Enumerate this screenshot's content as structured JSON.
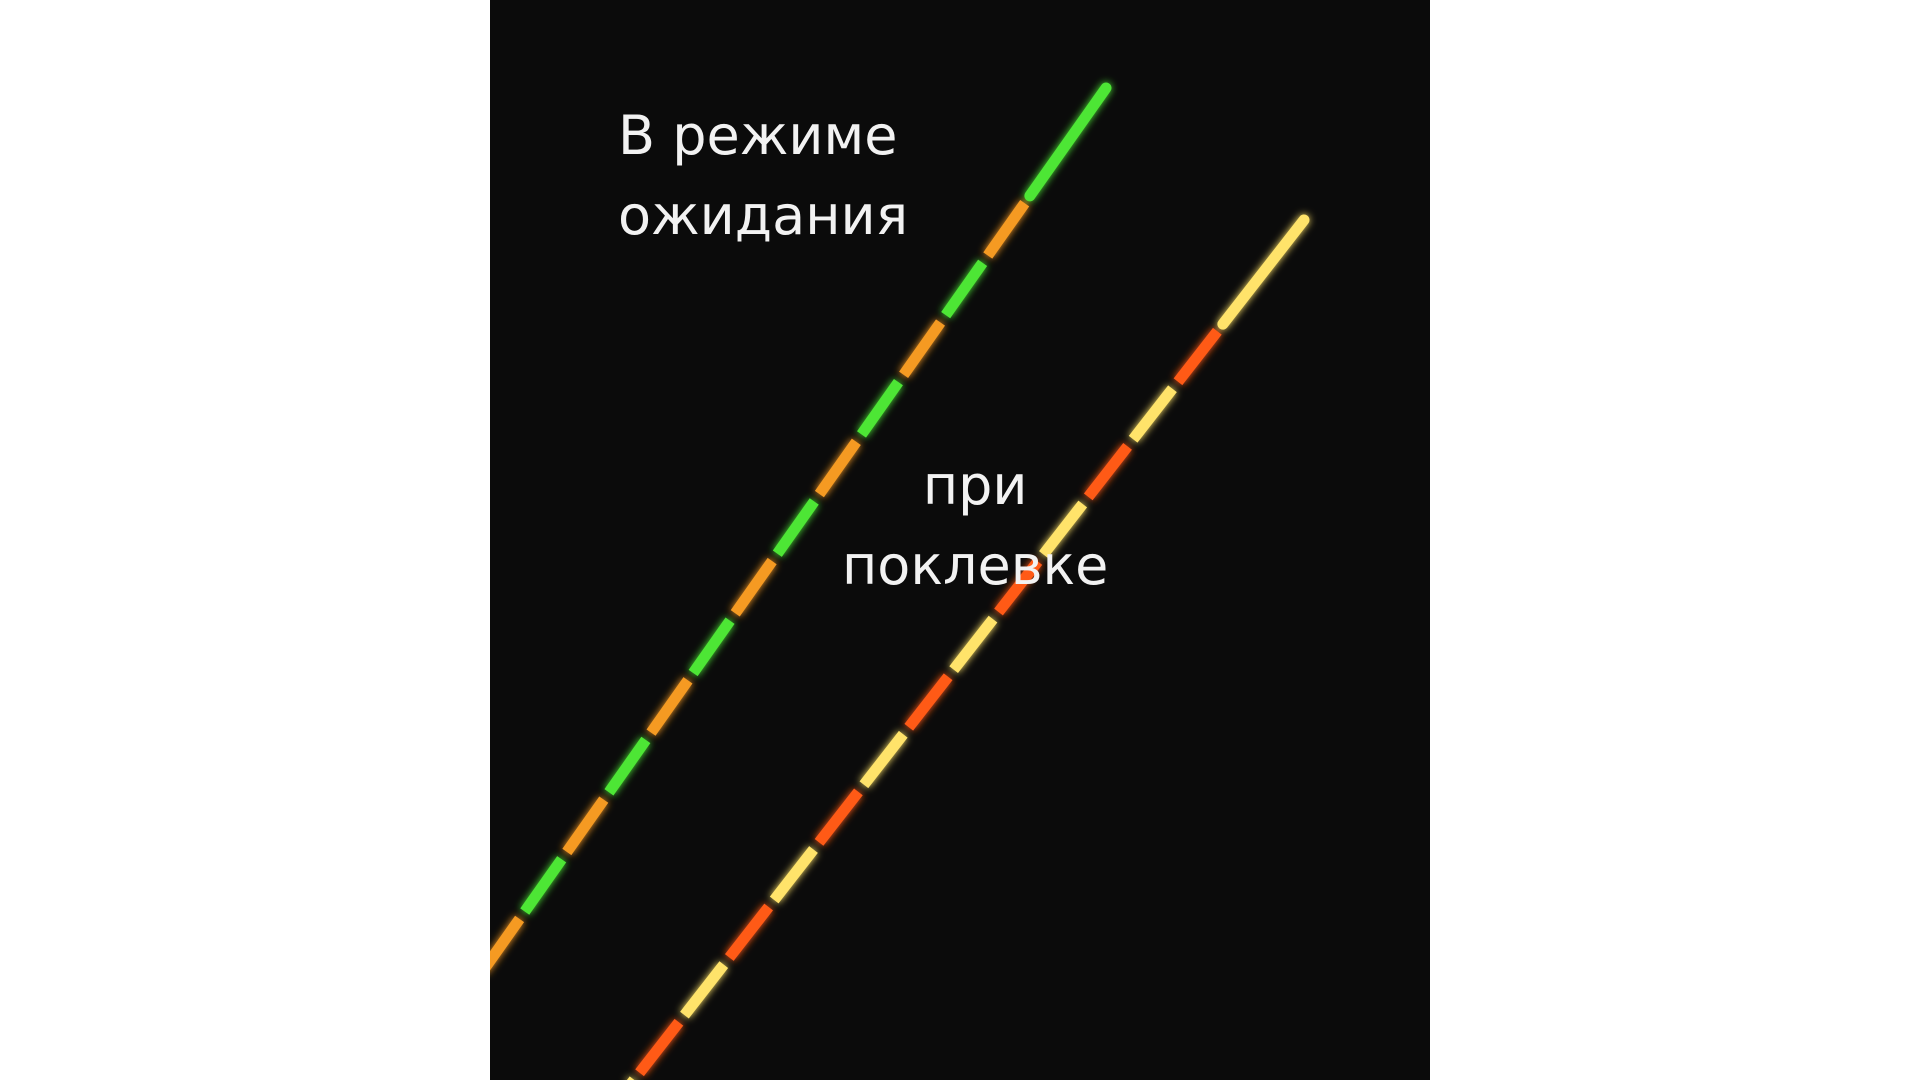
{
  "labels": {
    "waiting_line1": "В режиме",
    "waiting_line2": "ожидания",
    "bite_line1": "при",
    "bite_line2": "поклевке"
  },
  "floats": [
    {
      "name": "float-waiting",
      "tip_color": "#4ee636",
      "colors": [
        "#4ee636",
        "#f59a24"
      ],
      "glow": "#2fbf20"
    },
    {
      "name": "float-bite",
      "tip_color": "#ffe36a",
      "colors": [
        "#ffe36a",
        "#ff5a14"
      ],
      "glow": "#ff4a10"
    }
  ]
}
